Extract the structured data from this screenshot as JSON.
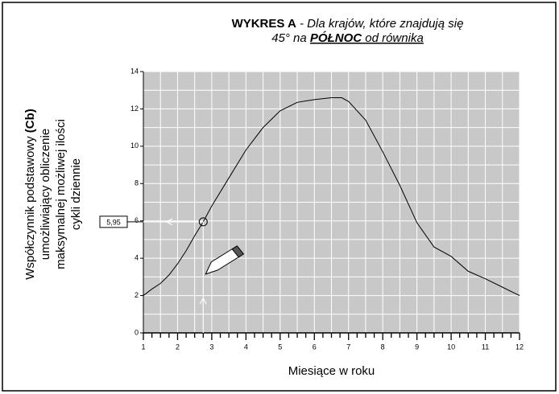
{
  "chart_data": {
    "type": "line",
    "title": [
      [
        "WYKRES A",
        " - Dla krajów, które znajdują się"
      ],
      [
        "45° na ",
        "PÓŁNOC",
        " od równika"
      ]
    ],
    "ylabel": [
      [
        "Współczynnik podstawowy ",
        "(Cb)"
      ],
      [
        "umożliwiający obliczenie"
      ],
      [
        "maksymalnej możliwej ilości"
      ],
      [
        "cykli dziennie"
      ]
    ],
    "xlabel": "Miesiące w roku",
    "x": [
      1,
      1.25,
      1.5,
      1.75,
      2,
      2.25,
      2.5,
      2.75,
      3,
      3.5,
      4,
      4.5,
      5,
      5.5,
      6,
      6.5,
      6.8,
      7,
      7.5,
      8,
      8.5,
      9,
      9.5,
      10,
      10.5,
      11,
      11.5,
      12
    ],
    "series": [
      {
        "color": "#000000",
        "values": [
          2.0,
          2.35,
          2.65,
          3.1,
          3.7,
          4.4,
          5.2,
          5.95,
          6.8,
          8.3,
          9.8,
          11.0,
          11.9,
          12.35,
          12.5,
          12.6,
          12.6,
          12.4,
          11.4,
          9.7,
          7.9,
          5.9,
          4.6,
          4.1,
          3.3,
          2.9,
          2.45,
          2.0
        ]
      }
    ],
    "xlim": [
      1,
      12
    ],
    "ylim": [
      0,
      14
    ],
    "xticks": [
      1,
      2,
      3,
      4,
      5,
      6,
      7,
      8,
      9,
      10,
      11,
      12
    ],
    "yticks": [
      0,
      2,
      4,
      6,
      8,
      10,
      12,
      14
    ],
    "grid": true,
    "annotation": {
      "x": 2.75,
      "y": 5.95,
      "label": "5,95"
    }
  }
}
